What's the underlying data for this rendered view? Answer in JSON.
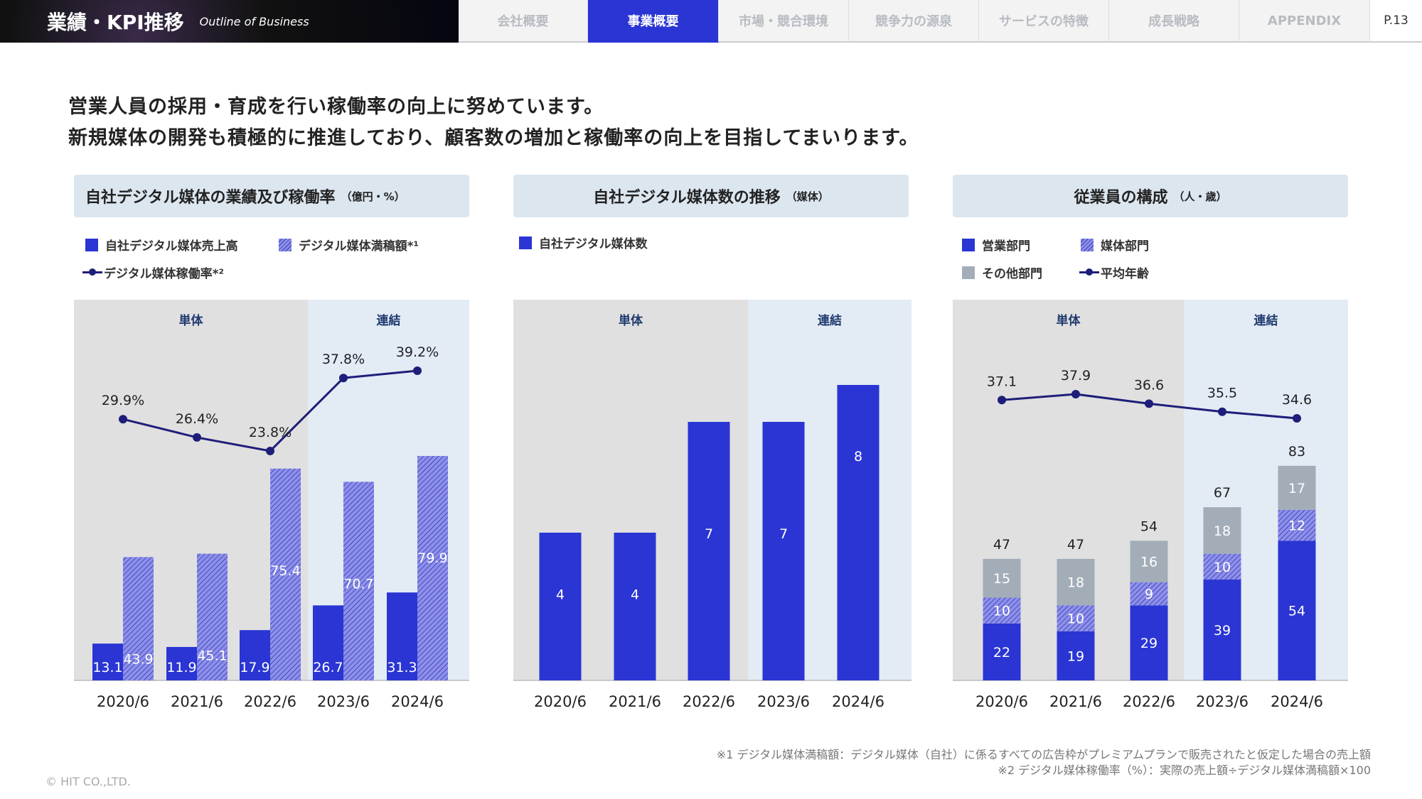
{
  "header": {
    "title": "業績・KPI推移",
    "subtitle": "Outline of Business",
    "page": "P.13",
    "tabs": [
      {
        "label": "会社概要"
      },
      {
        "label": "事業概要",
        "active": true
      },
      {
        "label": "市場・競合環境"
      },
      {
        "label": "競争力の源泉"
      },
      {
        "label": "サービスの特徴"
      },
      {
        "label": "成長戦略"
      },
      {
        "label": "APPENDIX"
      }
    ]
  },
  "headline": [
    "営業人員の採用・育成を行い稼働率の向上に努めています。",
    "新規媒体の開発も積極的に推進しており、顧客数の増加と稼働率の向上を目指してまいります。"
  ],
  "panels": [
    {
      "title": "自社デジタル媒体の業績及び稼働率",
      "unit": "（億円・%）",
      "legend": [
        "自社デジタル媒体売上高",
        "デジタル媒体満稿額*¹",
        "デジタル媒体稼働率*²"
      ]
    },
    {
      "title": "自社デジタル媒体数の推移",
      "unit": "（媒体）",
      "legend": [
        "自社デジタル媒体数"
      ]
    },
    {
      "title": "従業員の構成",
      "unit": "（人・歳）",
      "legend": [
        "営業部門",
        "媒体部門",
        "その他部門",
        "平均年齢"
      ]
    }
  ],
  "colors": {
    "primary": "#2a35d4",
    "hatch": "#8d90ec",
    "other": "#a3adb8",
    "line": "#1e1e7a",
    "standalone_bg": "#e0e0e0",
    "consolidated_bg": "#e3ebf5"
  },
  "chart_data": [
    {
      "type": "bar",
      "categories": [
        "2020/6",
        "2021/6",
        "2022/6",
        "2023/6",
        "2024/6"
      ],
      "regions": [
        "単体",
        "連結"
      ],
      "series": [
        {
          "name": "自社デジタル媒体売上高",
          "values": [
            13.1,
            11.9,
            17.9,
            26.7,
            31.3
          ]
        },
        {
          "name": "デジタル媒体満稿額",
          "values": [
            43.9,
            45.1,
            75.4,
            70.7,
            79.9
          ]
        },
        {
          "name": "デジタル媒体稼働率",
          "type": "line",
          "values": [
            29.9,
            26.4,
            23.8,
            37.8,
            39.2
          ],
          "labels": [
            "29.9%",
            "26.4%",
            "23.8%",
            "37.8%",
            "39.2%"
          ]
        }
      ]
    },
    {
      "type": "bar",
      "categories": [
        "2020/6",
        "2021/6",
        "2022/6",
        "2023/6",
        "2024/6"
      ],
      "regions": [
        "単体",
        "連結"
      ],
      "series": [
        {
          "name": "自社デジタル媒体数",
          "values": [
            4,
            4,
            7,
            7,
            8
          ]
        }
      ]
    },
    {
      "type": "bar",
      "stacked": true,
      "categories": [
        "2020/6",
        "2021/6",
        "2022/6",
        "2023/6",
        "2024/6"
      ],
      "regions": [
        "単体",
        "連結"
      ],
      "series": [
        {
          "name": "営業部門",
          "values": [
            22,
            19,
            29,
            39,
            54
          ]
        },
        {
          "name": "媒体部門",
          "values": [
            10,
            10,
            9,
            10,
            12
          ]
        },
        {
          "name": "その他部門",
          "values": [
            15,
            18,
            16,
            18,
            17
          ]
        },
        {
          "name": "平均年齢",
          "type": "line",
          "values": [
            37.1,
            37.9,
            36.6,
            35.5,
            34.6
          ]
        }
      ],
      "totals": [
        47,
        47,
        54,
        67,
        83
      ]
    }
  ],
  "footnotes": [
    "※1 デジタル媒体満稿額：デジタル媒体（自社）に係るすべての広告枠がプレミアムプランで販売されたと仮定した場合の売上額",
    "※2 デジタル媒体稼働率（%）：実際の売上額÷デジタル媒体満稿額×100"
  ],
  "copyright": "© HIT CO.,LTD."
}
